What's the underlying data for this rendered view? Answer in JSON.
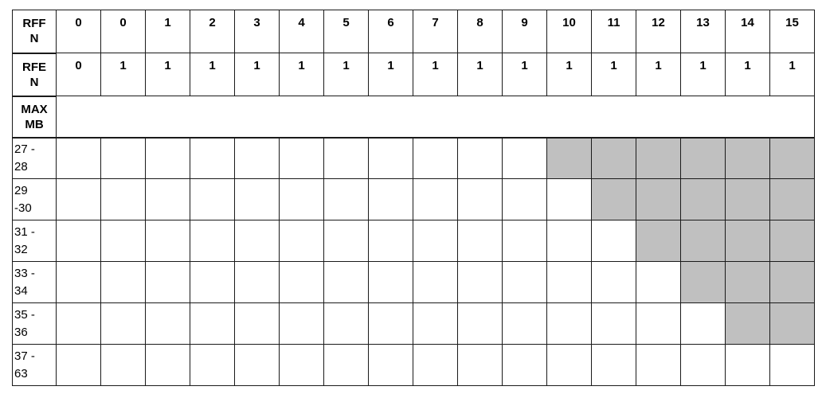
{
  "table": {
    "rffn": {
      "label": "RFF\nN",
      "values": [
        "0",
        "0",
        "1",
        "2",
        "3",
        "4",
        "5",
        "6",
        "7",
        "8",
        "9",
        "10",
        "11",
        "12",
        "13",
        "14",
        "15"
      ]
    },
    "rfen": {
      "label": "RFE\nN",
      "values": [
        "0",
        "1",
        "1",
        "1",
        "1",
        "1",
        "1",
        "1",
        "1",
        "1",
        "1",
        "1",
        "1",
        "1",
        "1",
        "1",
        "1"
      ]
    },
    "maxmb": {
      "label": "MAX\nMB"
    },
    "rows": [
      {
        "label": "27 -\n28",
        "shaded_from": 12
      },
      {
        "label": "29\n-30",
        "shaded_from": 13
      },
      {
        "label": "31 -\n32",
        "shaded_from": 14
      },
      {
        "label": "33 -\n34",
        "shaded_from": 15
      },
      {
        "label": "35 -\n36",
        "shaded_from": 16
      },
      {
        "label": "37 -\n63",
        "shaded_from": 99
      }
    ],
    "shade_color": "#c0c0c0"
  }
}
